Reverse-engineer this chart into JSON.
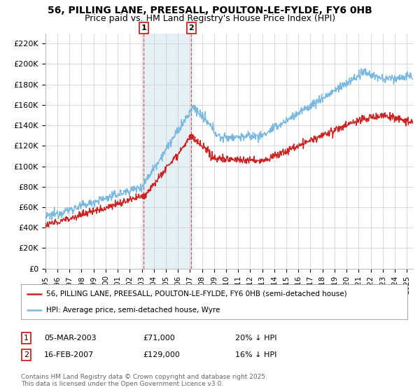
{
  "title": "56, PILLING LANE, PREESALL, POULTON-LE-FYLDE, FY6 0HB",
  "subtitle": "Price paid vs. HM Land Registry's House Price Index (HPI)",
  "ylim": [
    0,
    230000
  ],
  "yticks": [
    0,
    20000,
    40000,
    60000,
    80000,
    100000,
    120000,
    140000,
    160000,
    180000,
    200000,
    220000
  ],
  "sale1_date": 2003.17,
  "sale1_price": 71000,
  "sale2_date": 2007.12,
  "sale2_price": 129000,
  "hpi_color": "#7ab8e0",
  "price_color": "#cc2222",
  "shade_color": "#daeaf5",
  "annotation_box_color": "#cc2222",
  "grid_color": "#cccccc",
  "background_color": "#ffffff",
  "legend_line1": "56, PILLING LANE, PREESALL, POULTON-LE-FYLDE, FY6 0HB (semi-detached house)",
  "legend_line2": "HPI: Average price, semi-detached house, Wyre",
  "table_row1": [
    "1",
    "05-MAR-2003",
    "£71,000",
    "20% ↓ HPI"
  ],
  "table_row2": [
    "2",
    "16-FEB-2007",
    "£129,000",
    "16% ↓ HPI"
  ],
  "footnote": "Contains HM Land Registry data © Crown copyright and database right 2025.\nThis data is licensed under the Open Government Licence v3.0.",
  "title_fontsize": 10,
  "subtitle_fontsize": 9
}
